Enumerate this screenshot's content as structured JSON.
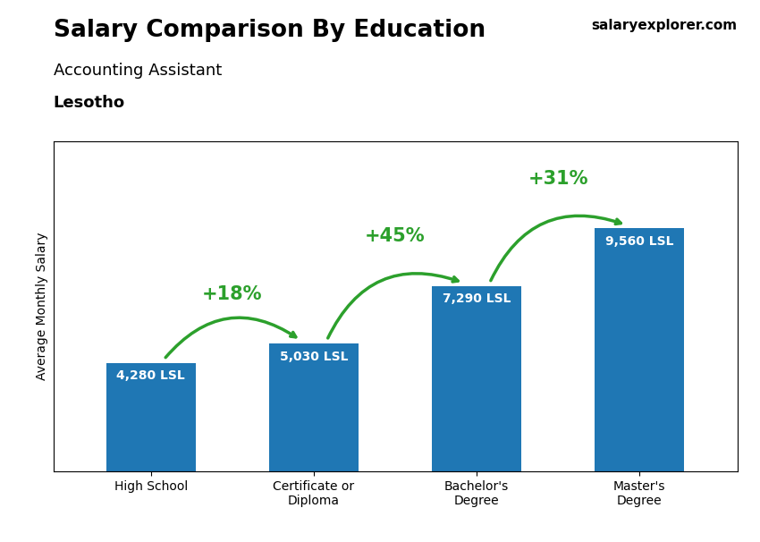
{
  "chart_data": {
    "type": "bar",
    "title": "Salary Comparison By Education",
    "subtitle": [
      "Accounting Assistant",
      "Lesotho"
    ],
    "ylabel": "Average Monthly Salary",
    "categories": [
      "High School",
      "Certificate or\nDiploma",
      "Bachelor's\nDegree",
      "Master's\nDegree"
    ],
    "values": [
      4280,
      5030,
      7290,
      9560
    ],
    "value_labels": [
      "4,280 LSL",
      "5,030 LSL",
      "7,290 LSL",
      "9,560 LSL"
    ],
    "data_labels": true,
    "ylim": [
      0,
      13000
    ],
    "tick_labels": "x",
    "grid": false,
    "annotations": [
      {
        "text": "salaryexplorer.com"
      },
      {
        "text": "+18%",
        "from": 0,
        "to": 1
      },
      {
        "text": "+45%",
        "from": 1,
        "to": 2
      },
      {
        "text": "+31%",
        "from": 2,
        "to": 3
      }
    ]
  }
}
